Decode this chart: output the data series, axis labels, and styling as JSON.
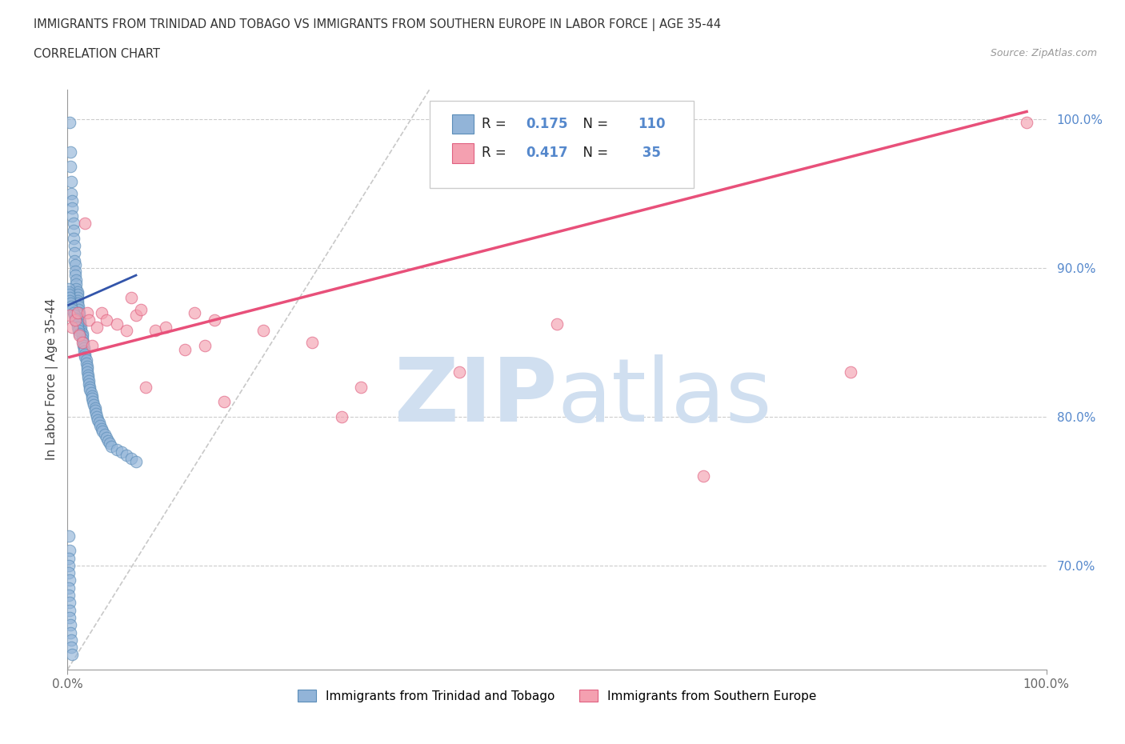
{
  "title_line1": "IMMIGRANTS FROM TRINIDAD AND TOBAGO VS IMMIGRANTS FROM SOUTHERN EUROPE IN LABOR FORCE | AGE 35-44",
  "title_line2": "CORRELATION CHART",
  "source_text": "Source: ZipAtlas.com",
  "ylabel": "In Labor Force | Age 35-44",
  "xlim": [
    0.0,
    1.0
  ],
  "ylim": [
    0.63,
    1.02
  ],
  "y_ticks": [
    0.7,
    0.8,
    0.9,
    1.0
  ],
  "y_tick_labels": [
    "70.0%",
    "80.0%",
    "90.0%",
    "100.0%"
  ],
  "legend_R1": "0.175",
  "legend_N1": "110",
  "legend_R2": "0.417",
  "legend_N2": " 35",
  "color_blue": "#92B4D8",
  "color_blue_edge": "#5B8DB8",
  "color_pink": "#F4A0B0",
  "color_pink_edge": "#E06080",
  "color_trend_blue": "#3355AA",
  "color_trend_pink": "#E8507A",
  "color_ref_line": "#BBBBBB",
  "color_grid": "#CCCCCC",
  "color_text_blue": "#5588CC",
  "color_axis": "#999999",
  "watermark_color": "#D0DFF0",
  "legend_label1": "Immigrants from Trinidad and Tobago",
  "legend_label2": "Immigrants from Southern Europe",
  "blue_x": [
    0.002,
    0.003,
    0.003,
    0.004,
    0.004,
    0.005,
    0.005,
    0.005,
    0.006,
    0.006,
    0.006,
    0.007,
    0.007,
    0.007,
    0.008,
    0.008,
    0.008,
    0.009,
    0.009,
    0.009,
    0.01,
    0.01,
    0.01,
    0.01,
    0.01,
    0.011,
    0.011,
    0.012,
    0.012,
    0.012,
    0.013,
    0.013,
    0.014,
    0.014,
    0.015,
    0.015,
    0.015,
    0.016,
    0.016,
    0.017,
    0.017,
    0.018,
    0.018,
    0.019,
    0.019,
    0.02,
    0.02,
    0.02,
    0.021,
    0.021,
    0.022,
    0.022,
    0.023,
    0.023,
    0.024,
    0.025,
    0.025,
    0.026,
    0.027,
    0.028,
    0.028,
    0.029,
    0.03,
    0.031,
    0.032,
    0.033,
    0.035,
    0.036,
    0.038,
    0.04,
    0.041,
    0.043,
    0.045,
    0.05,
    0.055,
    0.06,
    0.065,
    0.07,
    0.001,
    0.001,
    0.001,
    0.002,
    0.002,
    0.003,
    0.004,
    0.005,
    0.006,
    0.007,
    0.008,
    0.009,
    0.01,
    0.01,
    0.011,
    0.012,
    0.001,
    0.002,
    0.001,
    0.001,
    0.001,
    0.002,
    0.001,
    0.001,
    0.002,
    0.002,
    0.002,
    0.003,
    0.003,
    0.004,
    0.004,
    0.005
  ],
  "blue_y": [
    0.998,
    0.978,
    0.968,
    0.958,
    0.95,
    0.945,
    0.94,
    0.935,
    0.93,
    0.925,
    0.92,
    0.915,
    0.91,
    0.905,
    0.902,
    0.898,
    0.895,
    0.892,
    0.889,
    0.886,
    0.884,
    0.882,
    0.88,
    0.878,
    0.876,
    0.874,
    0.872,
    0.87,
    0.868,
    0.866,
    0.864,
    0.862,
    0.86,
    0.858,
    0.856,
    0.854,
    0.852,
    0.85,
    0.848,
    0.846,
    0.844,
    0.842,
    0.84,
    0.838,
    0.836,
    0.834,
    0.832,
    0.83,
    0.828,
    0.826,
    0.824,
    0.822,
    0.82,
    0.818,
    0.816,
    0.814,
    0.812,
    0.81,
    0.808,
    0.806,
    0.804,
    0.802,
    0.8,
    0.798,
    0.796,
    0.794,
    0.792,
    0.79,
    0.788,
    0.786,
    0.784,
    0.782,
    0.78,
    0.778,
    0.776,
    0.774,
    0.772,
    0.77,
    0.886,
    0.884,
    0.882,
    0.88,
    0.878,
    0.876,
    0.874,
    0.872,
    0.87,
    0.868,
    0.866,
    0.864,
    0.862,
    0.86,
    0.858,
    0.856,
    0.72,
    0.71,
    0.705,
    0.7,
    0.695,
    0.69,
    0.685,
    0.68,
    0.675,
    0.67,
    0.665,
    0.66,
    0.655,
    0.65,
    0.645,
    0.64
  ],
  "pink_x": [
    0.002,
    0.005,
    0.008,
    0.01,
    0.012,
    0.015,
    0.018,
    0.02,
    0.022,
    0.025,
    0.03,
    0.035,
    0.04,
    0.05,
    0.06,
    0.065,
    0.07,
    0.075,
    0.08,
    0.09,
    0.1,
    0.12,
    0.13,
    0.14,
    0.15,
    0.16,
    0.2,
    0.25,
    0.28,
    0.3,
    0.4,
    0.5,
    0.65,
    0.8,
    0.98
  ],
  "pink_y": [
    0.868,
    0.86,
    0.865,
    0.87,
    0.855,
    0.85,
    0.93,
    0.87,
    0.865,
    0.848,
    0.86,
    0.87,
    0.865,
    0.862,
    0.858,
    0.88,
    0.868,
    0.872,
    0.82,
    0.858,
    0.86,
    0.845,
    0.87,
    0.848,
    0.865,
    0.81,
    0.858,
    0.85,
    0.8,
    0.82,
    0.83,
    0.862,
    0.76,
    0.83,
    0.998
  ],
  "blue_trend_x": [
    0.001,
    0.07
  ],
  "blue_trend_y": [
    0.875,
    0.895
  ],
  "pink_trend_x": [
    0.002,
    0.98
  ],
  "pink_trend_y": [
    0.84,
    1.005
  ],
  "ref_line_x": [
    0.0,
    0.37
  ],
  "ref_line_y": [
    0.63,
    1.02
  ]
}
